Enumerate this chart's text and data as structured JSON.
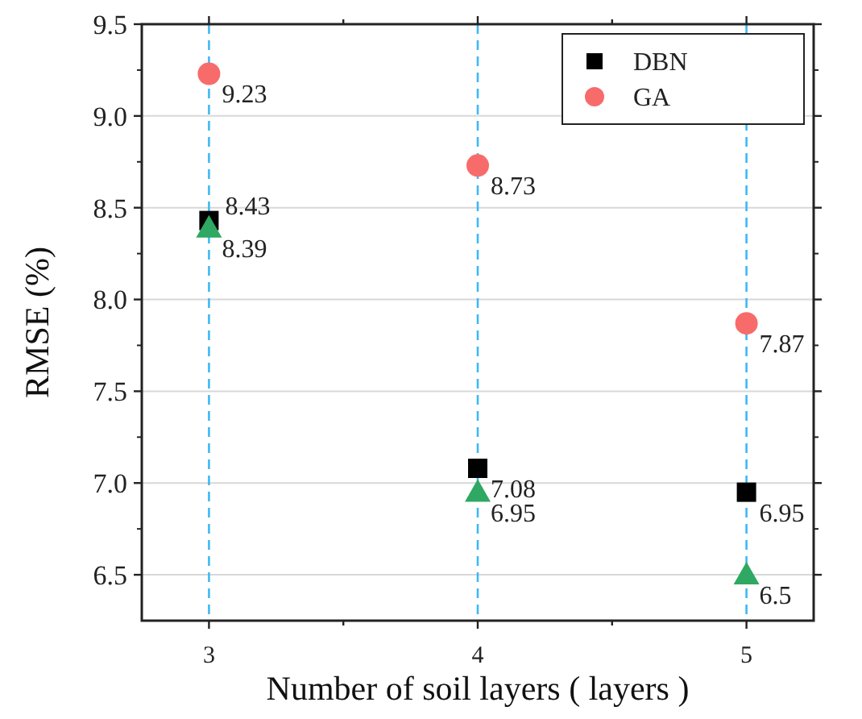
{
  "chart_data": {
    "type": "scatter",
    "xlabel": "Number of soil layers ( layers )",
    "ylabel": "RMSE (%)",
    "x": [
      3,
      4,
      5
    ],
    "series": [
      {
        "name": "DBN",
        "color": "#000000",
        "marker": "square",
        "values": [
          8.43,
          7.08,
          6.95
        ]
      },
      {
        "name": "GA",
        "color": "#f86b6b",
        "marker": "circle",
        "values": [
          9.23,
          8.73,
          7.87
        ]
      },
      {
        "color": "#2ea862",
        "marker": "triangle",
        "values": [
          8.39,
          6.95,
          6.5
        ]
      }
    ],
    "xlim": [
      2.75,
      5.25
    ],
    "xticks": [
      3,
      {
        "value": 3.5,
        "label": null
      },
      4,
      {
        "value": 4.5,
        "label": null
      },
      5
    ],
    "ylim": [
      6.25,
      9.5
    ],
    "yticks": [
      {
        "value": 6.5,
        "label": "6.5"
      },
      {
        "value": 7,
        "label": "7.0"
      },
      {
        "value": 7.5,
        "label": "7.5"
      },
      {
        "value": 8,
        "label": "8.0"
      },
      {
        "value": 8.5,
        "label": "8.5"
      },
      {
        "value": 9,
        "label": "9.0"
      },
      {
        "value": 9.5,
        "label": "9.5"
      }
    ],
    "grid": true,
    "legend": "top right",
    "data_labels": true
  }
}
